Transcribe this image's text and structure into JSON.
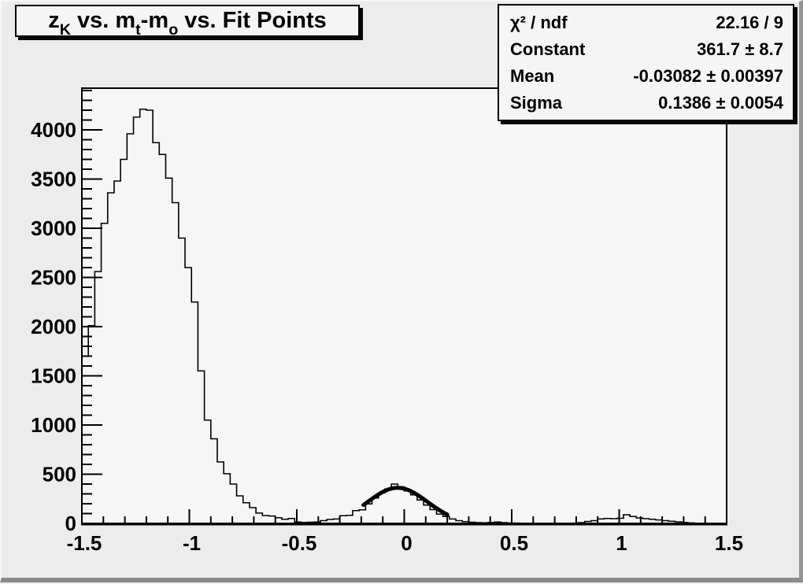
{
  "title": {
    "plain": "zK vs. mt-mo vs. Fit Points",
    "segments": [
      {
        "text": "z",
        "sub": "K"
      },
      {
        "text": " vs. m",
        "sub": "t"
      },
      {
        "text": "-m",
        "sub": "o"
      },
      {
        "text": " vs. Fit Points",
        "sub": ""
      }
    ]
  },
  "stats": {
    "rows": [
      {
        "label": "χ² / ndf",
        "value": "22.16 / 9"
      },
      {
        "label": "Constant",
        "value": "361.7 ± 8.7"
      },
      {
        "label": "Mean",
        "value": "-0.03082 ± 0.00397"
      },
      {
        "label": "Sigma",
        "value": "0.1386 ± 0.0054"
      }
    ]
  },
  "chart_data": {
    "type": "histogram",
    "title": "zK vs. mt-mo vs. Fit Points",
    "xlabel": "",
    "ylabel": "",
    "x_range": [
      -1.5,
      1.5
    ],
    "y_range": [
      0,
      4424
    ],
    "grid": false,
    "legend_position": "none",
    "bin_start": -1.5,
    "bin_width": 0.03,
    "counts": [
      1700,
      2010,
      2560,
      3050,
      3360,
      3480,
      3700,
      3960,
      4130,
      4210,
      4200,
      3870,
      3750,
      3510,
      3260,
      2900,
      2600,
      2250,
      1550,
      1050,
      860,
      625,
      505,
      400,
      280,
      210,
      160,
      105,
      80,
      75,
      58,
      42,
      50,
      14,
      10,
      12,
      14,
      28,
      40,
      45,
      78,
      82,
      130,
      138,
      198,
      258,
      310,
      350,
      400,
      372,
      330,
      290,
      238,
      186,
      140,
      95,
      70,
      45,
      28,
      18,
      12,
      8,
      6,
      10,
      14,
      8,
      4,
      3,
      2,
      2,
      2,
      1,
      1,
      2,
      2,
      2,
      3,
      8,
      20,
      28,
      45,
      50,
      48,
      52,
      88,
      70,
      55,
      48,
      42,
      35,
      28,
      22,
      16,
      10,
      5,
      2,
      0,
      0,
      0,
      0
    ],
    "x_major_ticks": [
      -1.5,
      -1,
      -0.5,
      0,
      0.5,
      1,
      1.5
    ],
    "x_tick_labels": [
      "-1.5",
      "-1",
      "-0.5",
      "0",
      "0.5",
      "1",
      "1.5"
    ],
    "x_minor_step": 0.1,
    "y_major_ticks": [
      0,
      500,
      1000,
      1500,
      2000,
      2500,
      3000,
      3500,
      4000
    ],
    "y_tick_labels": [
      "0",
      "500",
      "1000",
      "1500",
      "2000",
      "2500",
      "3000",
      "3500",
      "4000"
    ],
    "y_minor_step": 100,
    "fit": {
      "shape": "gaussian",
      "chi2": 22.16,
      "ndf": 9,
      "constant": 361.7,
      "constant_error": 8.7,
      "mean": -0.03082,
      "mean_error": 0.00397,
      "sigma": 0.1386,
      "sigma_error": 0.0054,
      "draw_range": [
        -0.19,
        0.2
      ]
    },
    "colors": {
      "line": "#000000",
      "fit_line": "#000000",
      "plot_background": "#f6f6f6",
      "canvas_background": "#ececec"
    }
  }
}
